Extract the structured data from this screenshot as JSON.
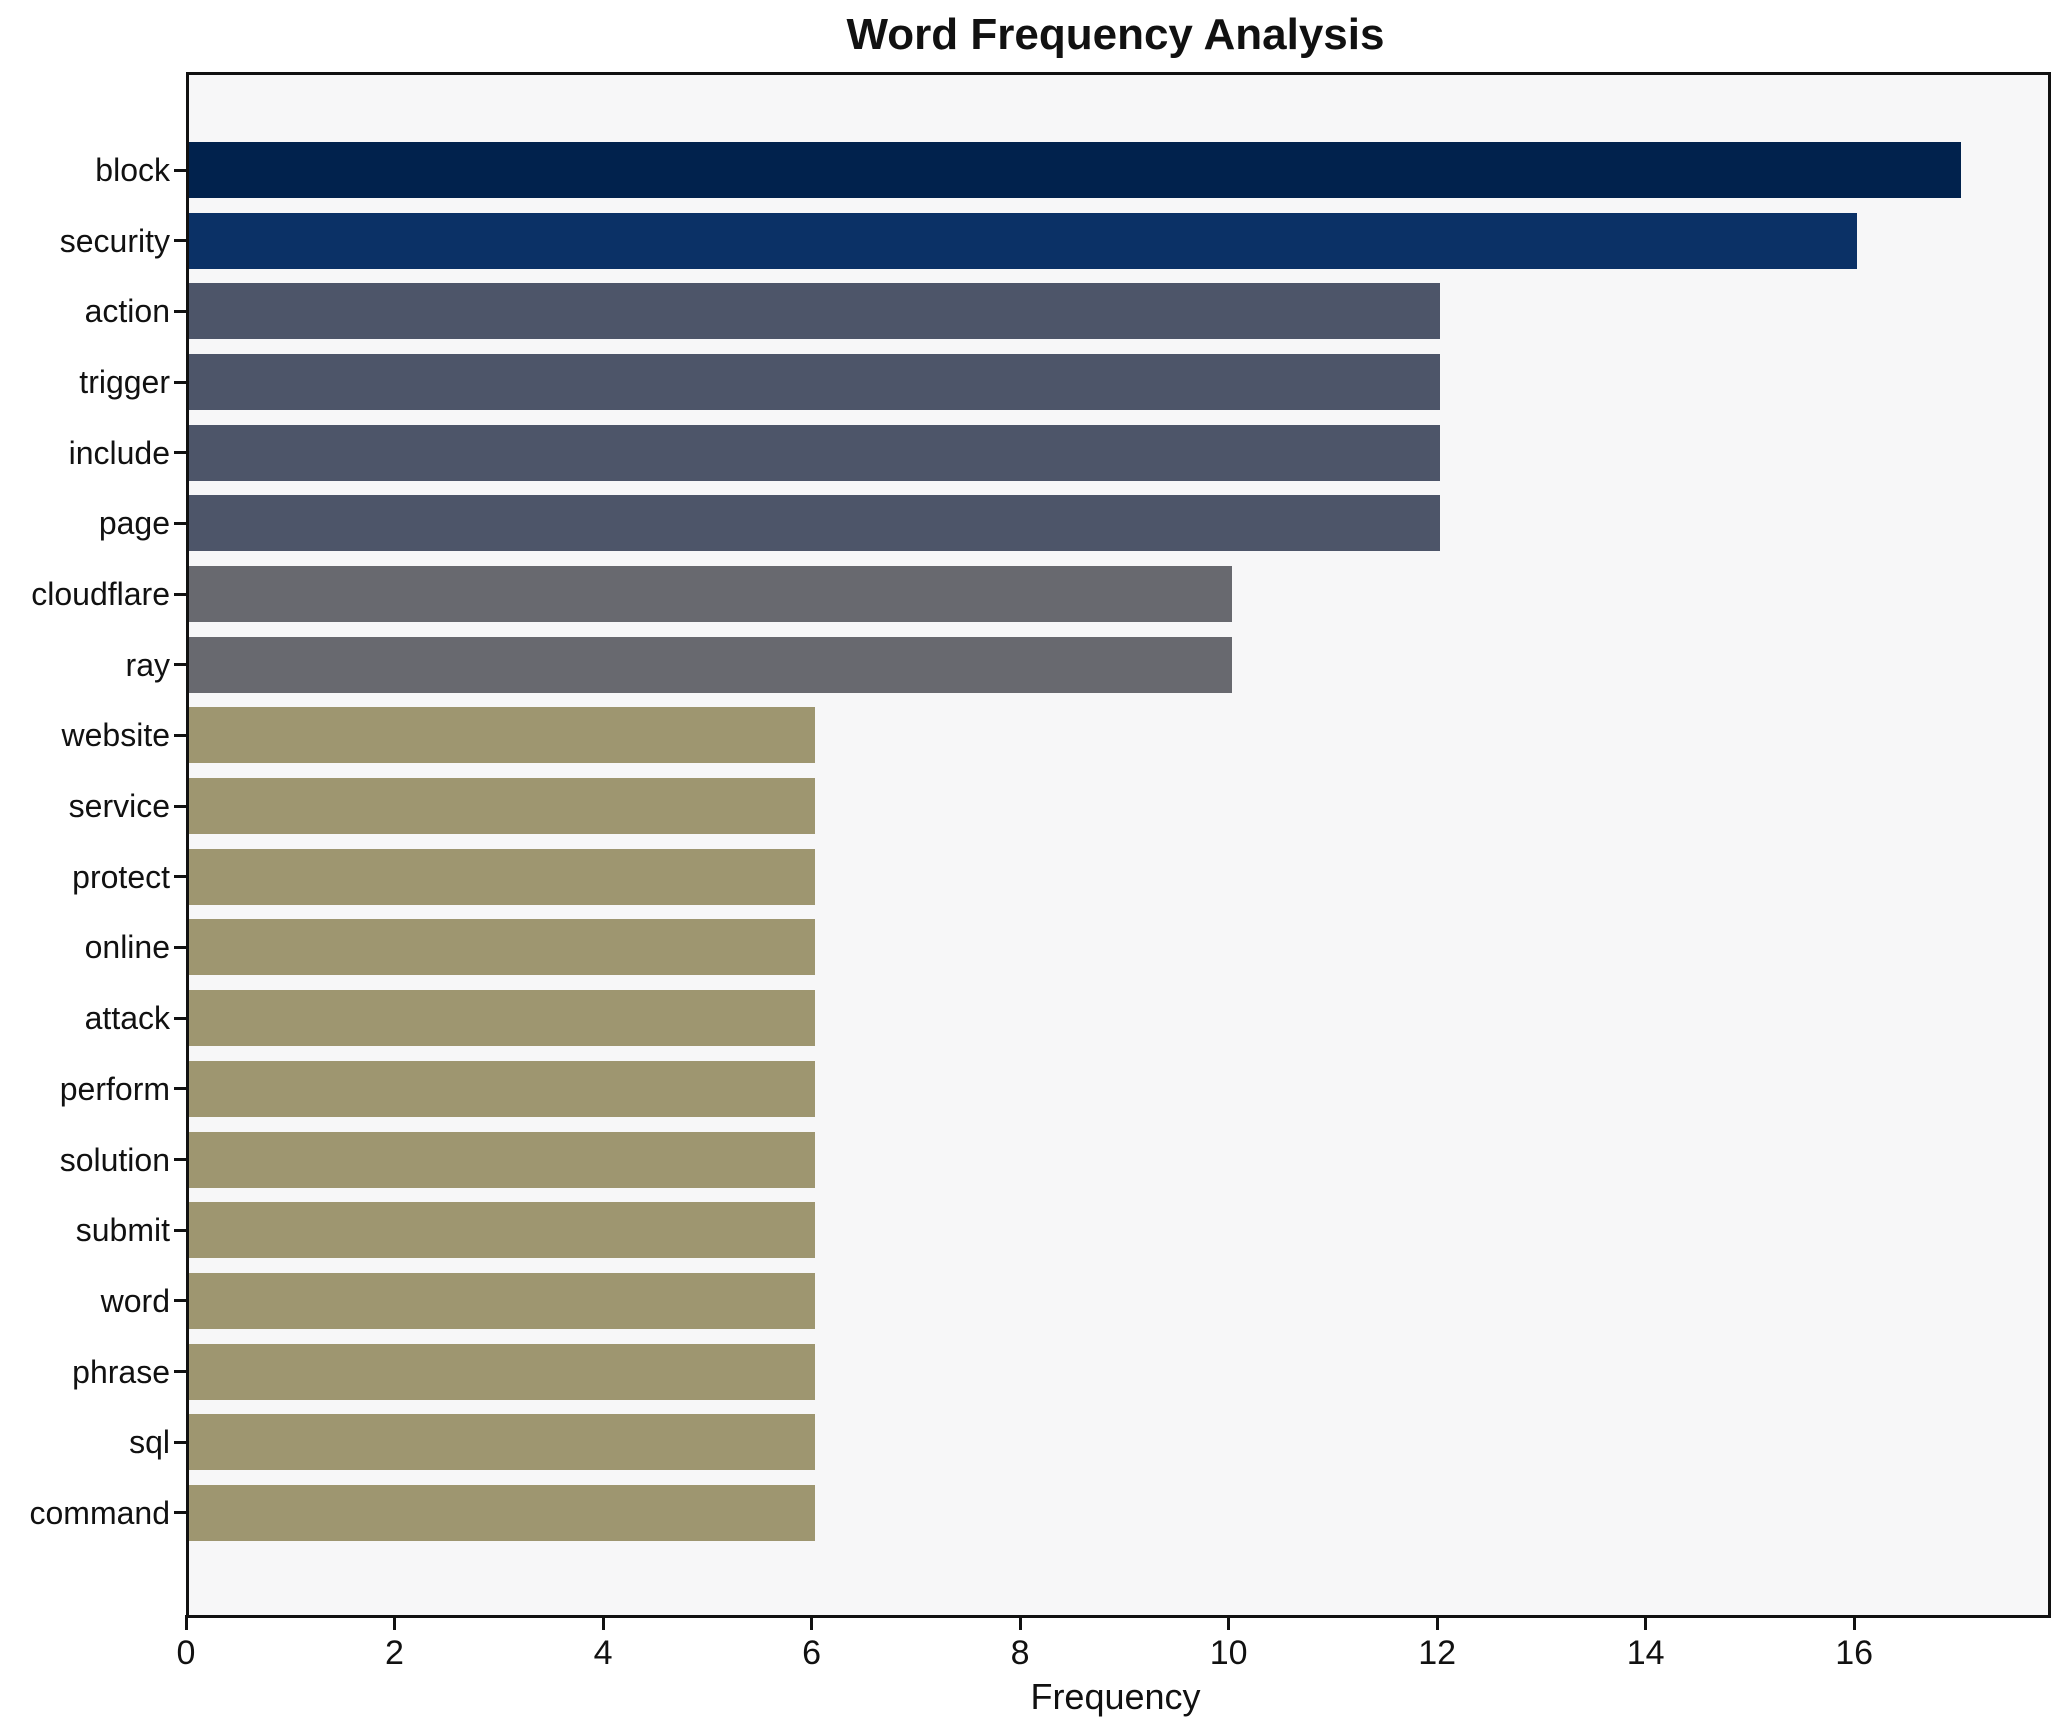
{
  "chart_data": {
    "type": "bar",
    "orientation": "horizontal",
    "title": "Word Frequency Analysis",
    "xlabel": "Frequency",
    "ylabel": "",
    "categories": [
      "block",
      "security",
      "action",
      "trigger",
      "include",
      "page",
      "cloudflare",
      "ray",
      "website",
      "service",
      "protect",
      "online",
      "attack",
      "perform",
      "solution",
      "submit",
      "word",
      "phrase",
      "sql",
      "command"
    ],
    "values": [
      17,
      16,
      12,
      12,
      12,
      12,
      10,
      10,
      6,
      6,
      6,
      6,
      6,
      6,
      6,
      6,
      6,
      6,
      6,
      6
    ],
    "bar_colors": [
      "#01224d",
      "#0b3166",
      "#4d5569",
      "#4d5569",
      "#4d5569",
      "#4d5569",
      "#68696f",
      "#68696f",
      "#9e9670",
      "#9e9670",
      "#9e9670",
      "#9e9670",
      "#9e9670",
      "#9e9670",
      "#9e9670",
      "#9e9670",
      "#9e9670",
      "#9e9670",
      "#9e9670",
      "#9e9670"
    ],
    "x_ticks": [
      0,
      2,
      4,
      6,
      8,
      10,
      12,
      14,
      16
    ],
    "xlim": [
      0,
      17.83
    ],
    "grid": false,
    "legend": null,
    "plot_bg": "#f7f7f8",
    "figure_bg": "#ffffff",
    "spine_color": "#111111"
  }
}
